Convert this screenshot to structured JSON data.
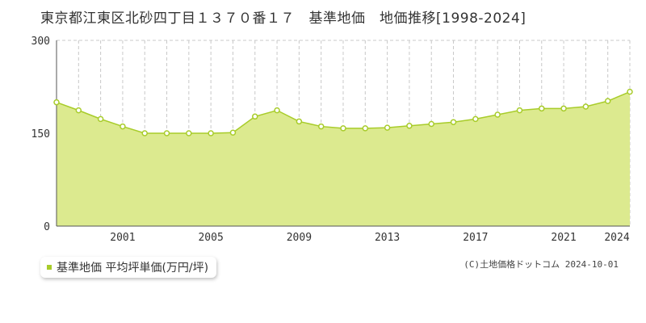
{
  "title": "東京都江東区北砂四丁目１３７０番１７　基準地価　地価推移[1998-2024]",
  "legend": {
    "label": "基準地価 平均坪単価(万円/坪)"
  },
  "copyright": "(C)土地価格ドットコム 2024-10-01",
  "colors": {
    "fill": "#dcea8f",
    "line": "#a8cc2a",
    "marker": "#a8cc2a",
    "grid": "#c8c8c8"
  },
  "chart_data": {
    "type": "area",
    "x": [
      1998,
      1999,
      2000,
      2001,
      2002,
      2003,
      2004,
      2005,
      2006,
      2007,
      2008,
      2009,
      2010,
      2011,
      2012,
      2013,
      2014,
      2015,
      2016,
      2017,
      2018,
      2019,
      2020,
      2021,
      2022,
      2023,
      2024
    ],
    "series": [
      {
        "values": [
          200,
          187,
          173,
          161,
          150,
          150,
          150,
          150,
          151,
          177,
          187,
          169,
          161,
          158,
          158,
          159,
          162,
          165,
          168,
          173,
          180,
          187,
          190,
          190,
          193,
          202,
          217
        ]
      }
    ],
    "xticks": [
      2001,
      2005,
      2009,
      2013,
      2017,
      2021,
      2024
    ],
    "yticks": [
      0,
      150,
      300
    ],
    "ylim": [
      0,
      300
    ],
    "xlim": [
      1998,
      2024
    ],
    "grid": true
  }
}
